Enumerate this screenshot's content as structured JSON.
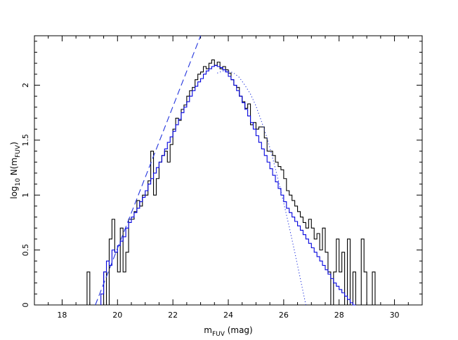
{
  "chart_data": {
    "type": "line",
    "xlabel": {
      "main": "m",
      "sub": "FUV",
      "rest": " (mag)"
    },
    "ylabel": {
      "p1": "log",
      "p1sub": "10",
      "p2": " N(m",
      "p2sub": "FUV",
      "p3": ")"
    },
    "xlim": [
      17,
      31
    ],
    "ylim": [
      0,
      2.45
    ],
    "xticks": [
      18,
      20,
      22,
      24,
      26,
      28,
      30
    ],
    "yticks": [
      0,
      0.5,
      1,
      1.5,
      2
    ],
    "xtick_labels": [
      "18",
      "20",
      "22",
      "24",
      "26",
      "28",
      "30"
    ],
    "ytick_labels": [
      "0",
      "0.5",
      "1",
      "1.5",
      "2"
    ],
    "grid": false,
    "bin_width": 0.1,
    "series": [
      {
        "style": "histogram",
        "color": "#000000",
        "x": [
          18.9,
          19.0,
          19.1,
          19.2,
          19.3,
          19.4,
          19.5,
          19.6,
          19.7,
          19.8,
          19.9,
          20.0,
          20.1,
          20.2,
          20.3,
          20.4,
          20.5,
          20.6,
          20.7,
          20.8,
          20.9,
          21.0,
          21.1,
          21.2,
          21.3,
          21.4,
          21.5,
          21.6,
          21.7,
          21.8,
          21.9,
          22.0,
          22.1,
          22.2,
          22.3,
          22.4,
          22.5,
          22.6,
          22.7,
          22.8,
          22.9,
          23.0,
          23.1,
          23.2,
          23.3,
          23.4,
          23.5,
          23.6,
          23.7,
          23.8,
          23.9,
          24.0,
          24.1,
          24.2,
          24.3,
          24.4,
          24.5,
          24.6,
          24.7,
          24.8,
          24.9,
          25.0,
          25.1,
          25.2,
          25.3,
          25.4,
          25.5,
          25.6,
          25.7,
          25.8,
          25.9,
          26.0,
          26.1,
          26.2,
          26.3,
          26.4,
          26.5,
          26.6,
          26.7,
          26.8,
          26.9,
          27.0,
          27.1,
          27.2,
          27.3,
          27.4,
          27.5,
          27.6,
          27.7,
          27.8,
          27.9,
          28.0,
          28.1,
          28.2,
          28.3,
          28.4,
          28.5,
          28.6,
          28.7,
          28.8,
          28.9,
          29.0,
          29.1,
          29.2
        ],
        "y": [
          0.3,
          0.0,
          0.0,
          0.0,
          0.0,
          0.0,
          0.3,
          0.0,
          0.6,
          0.78,
          0.48,
          0.3,
          0.7,
          0.3,
          0.48,
          0.78,
          0.78,
          0.85,
          0.95,
          0.9,
          1.0,
          1.0,
          1.13,
          1.4,
          1.0,
          1.15,
          1.3,
          1.36,
          1.4,
          1.3,
          1.46,
          1.6,
          1.7,
          1.68,
          1.78,
          1.82,
          1.9,
          1.95,
          1.98,
          2.05,
          2.1,
          2.12,
          2.17,
          2.15,
          2.2,
          2.23,
          2.18,
          2.21,
          2.15,
          2.17,
          2.14,
          2.11,
          2.05,
          2.0,
          1.98,
          1.9,
          1.85,
          1.79,
          1.83,
          1.64,
          1.66,
          1.6,
          1.62,
          1.62,
          1.52,
          1.4,
          1.4,
          1.36,
          1.3,
          1.26,
          1.23,
          1.15,
          1.04,
          1.0,
          0.95,
          0.9,
          0.85,
          0.8,
          0.75,
          0.7,
          0.78,
          0.7,
          0.6,
          0.65,
          0.5,
          0.7,
          0.48,
          0.3,
          0.0,
          0.3,
          0.6,
          0.3,
          0.48,
          0.0,
          0.6,
          0.0,
          0.3,
          0.0,
          0.0,
          0.6,
          0.3,
          0.0,
          0.0,
          0.3
        ]
      },
      {
        "style": "histogram",
        "color": "#0000dd",
        "x": [
          19.4,
          19.5,
          19.6,
          19.7,
          19.8,
          19.9,
          20.0,
          20.1,
          20.2,
          20.3,
          20.4,
          20.5,
          20.6,
          20.7,
          20.8,
          20.9,
          21.0,
          21.1,
          21.2,
          21.3,
          21.4,
          21.5,
          21.6,
          21.7,
          21.8,
          21.9,
          22.0,
          22.1,
          22.2,
          22.3,
          22.4,
          22.5,
          22.6,
          22.7,
          22.8,
          22.9,
          23.0,
          23.1,
          23.2,
          23.3,
          23.4,
          23.5,
          23.6,
          23.7,
          23.8,
          23.9,
          24.0,
          24.1,
          24.2,
          24.3,
          24.4,
          24.5,
          24.6,
          24.7,
          24.8,
          24.9,
          25.0,
          25.1,
          25.2,
          25.3,
          25.4,
          25.5,
          25.6,
          25.7,
          25.8,
          25.9,
          26.0,
          26.1,
          26.2,
          26.3,
          26.4,
          26.5,
          26.6,
          26.7,
          26.8,
          26.9,
          27.0,
          27.1,
          27.2,
          27.3,
          27.4,
          27.5,
          27.6,
          27.7,
          27.8,
          27.9,
          28.0,
          28.1,
          28.2,
          28.3,
          28.4,
          28.5
        ],
        "y": [
          0.1,
          0.3,
          0.4,
          0.36,
          0.5,
          0.48,
          0.54,
          0.58,
          0.62,
          0.7,
          0.75,
          0.8,
          0.84,
          0.88,
          0.94,
          0.98,
          1.04,
          1.1,
          1.15,
          1.2,
          1.25,
          1.3,
          1.36,
          1.42,
          1.48,
          1.53,
          1.58,
          1.64,
          1.69,
          1.75,
          1.8,
          1.85,
          1.9,
          1.95,
          1.99,
          2.03,
          2.06,
          2.1,
          2.13,
          2.15,
          2.17,
          2.18,
          2.17,
          2.16,
          2.14,
          2.12,
          2.08,
          2.05,
          2.0,
          1.95,
          1.9,
          1.84,
          1.78,
          1.72,
          1.66,
          1.6,
          1.54,
          1.48,
          1.42,
          1.36,
          1.3,
          1.24,
          1.18,
          1.12,
          1.06,
          1.0,
          0.94,
          0.88,
          0.84,
          0.8,
          0.76,
          0.72,
          0.68,
          0.64,
          0.6,
          0.56,
          0.52,
          0.48,
          0.44,
          0.4,
          0.36,
          0.32,
          0.28,
          0.24,
          0.2,
          0.17,
          0.14,
          0.11,
          0.08,
          0.05,
          0.02,
          0.0
        ]
      },
      {
        "style": "dashed",
        "color": "#2233dd",
        "x": [
          19.2,
          23.0
        ],
        "y": [
          0.0,
          2.45
        ]
      },
      {
        "style": "dotted",
        "color": "#2233dd",
        "x": [
          23.6,
          23.8,
          24.0,
          24.2,
          24.4,
          24.6,
          24.8,
          25.0,
          25.2,
          25.4,
          25.6,
          25.8,
          26.0,
          26.2,
          26.4,
          26.6,
          26.8
        ],
        "y": [
          2.11,
          2.13,
          2.13,
          2.11,
          2.07,
          2.0,
          1.92,
          1.81,
          1.67,
          1.52,
          1.34,
          1.14,
          0.93,
          0.71,
          0.48,
          0.24,
          0.0
        ]
      }
    ]
  }
}
